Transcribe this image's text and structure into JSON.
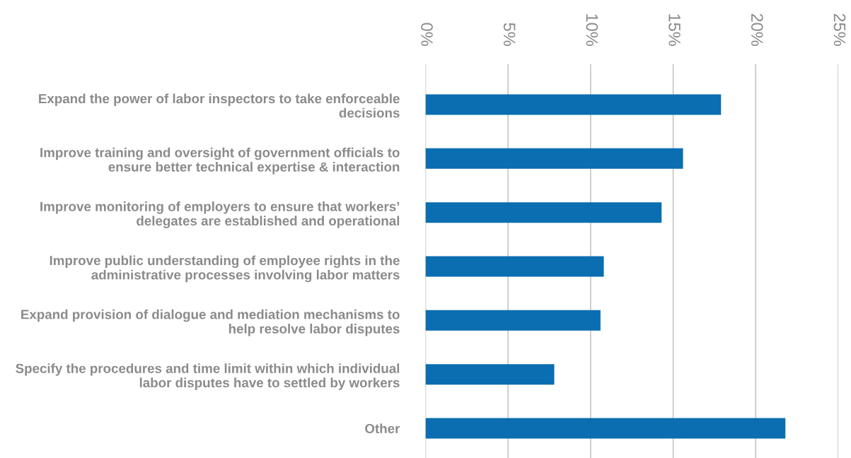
{
  "chart_data": {
    "type": "bar",
    "orientation": "horizontal",
    "categories": [
      "Expand the power of labor inspectors to take enforceable\ndecisions",
      "Improve training and oversight of government officials to\nensure better technical expertise & interaction",
      "Improve monitoring of employers to ensure that workers’\ndelegates are established and operational",
      "Improve public understanding of employee rights in the\nadministrative processes involving labor matters",
      "Expand provision of dialogue and mediation mechanisms to\nhelp resolve labor disputes",
      "Specify the procedures and time limit within which individual\nlabor disputes have to settled by workers",
      "Other"
    ],
    "values": [
      17.9,
      15.6,
      14.3,
      10.8,
      10.6,
      7.8,
      21.8
    ],
    "color": "#0a6eb0",
    "xlim": [
      0,
      25
    ],
    "xticks": [
      {
        "value": 0,
        "label": "0%"
      },
      {
        "value": 5,
        "label": "5%"
      },
      {
        "value": 10,
        "label": "10%"
      },
      {
        "value": 15,
        "label": "15%"
      },
      {
        "value": 20,
        "label": "20%"
      },
      {
        "value": 25,
        "label": "25%"
      }
    ],
    "grid": "x"
  }
}
